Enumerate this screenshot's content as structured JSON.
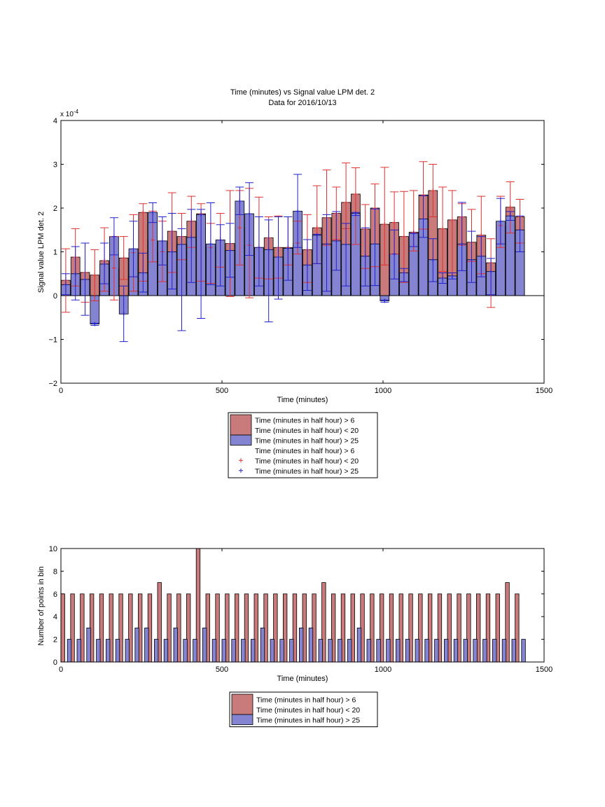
{
  "colors": {
    "red_fill": "#c97a7a",
    "blue_fill": "#8484d2",
    "red_err": "#e03030",
    "blue_err": "#2020cc",
    "axis": "#000000"
  },
  "chart_data": [
    {
      "type": "bar",
      "title": "Time (minutes) vs Signal value LPM det. 2",
      "subtitle": "Data for 2016/10/13",
      "xlabel": "Time (minutes)",
      "ylabel": "Signal value LPM det. 2",
      "exponent_label": "x 10",
      "exponent_power": "-4",
      "xlim": [
        0,
        1500
      ],
      "ylim": [
        -2,
        4
      ],
      "xticks": [
        0,
        500,
        1000,
        1500
      ],
      "yticks": [
        -2,
        -1,
        0,
        1,
        2,
        3,
        4
      ],
      "legend": {
        "position": "below",
        "entries": [
          {
            "label": "Time (minutes in half hour) > 6",
            "swatch": "red-bar"
          },
          {
            "label": "Time (minutes in half hour) < 20",
            "swatch": "red-bar"
          },
          {
            "label": "Time (minutes in half hour) > 25",
            "swatch": "blue-bar"
          },
          {
            "label": "Time (minutes in half hour) > 6",
            "swatch": "none"
          },
          {
            "label": "Time (minutes in half hour) < 20",
            "swatch": "red-plus"
          },
          {
            "label": "Time (minutes in half hour) > 25",
            "swatch": "blue-plus"
          }
        ]
      },
      "series": [
        {
          "color": "red",
          "x": [
            15,
            45,
            75,
            105,
            135,
            165,
            195,
            225,
            255,
            285,
            315,
            345,
            375,
            405,
            435,
            465,
            495,
            525,
            555,
            585,
            615,
            645,
            675,
            705,
            735,
            765,
            795,
            825,
            855,
            885,
            915,
            945,
            975,
            1005,
            1035,
            1065,
            1095,
            1125,
            1155,
            1185,
            1215,
            1245,
            1275,
            1305,
            1335,
            1365,
            1395,
            1425
          ],
          "y": [
            0.35,
            0.88,
            0.53,
            0.47,
            0.8,
            0.63,
            0.86,
            0.98,
            1.9,
            1.27,
            1.0,
            1.47,
            1.35,
            1.7,
            1.87,
            1.1,
            1.27,
            1.19,
            1.55,
            1.15,
            1.1,
            1.32,
            1.1,
            1.1,
            1.2,
            1.05,
            1.55,
            1.78,
            1.88,
            2.13,
            2.32,
            1.52,
            2.0,
            1.63,
            1.67,
            1.35,
            1.45,
            2.3,
            2.4,
            1.53,
            1.73,
            1.8,
            1.22,
            1.38,
            0.75,
            1.6,
            2.02,
            1.8
          ],
          "err_low": [
            -0.38,
            0.22,
            -0.15,
            -0.12,
            0.1,
            -0.1,
            0.37,
            0.1,
            0.33,
            0.77,
            0.32,
            0.53,
            0.82,
            1.1,
            0.33,
            0.28,
            0.65,
            -0.02,
            0.7,
            -0.05,
            0.4,
            0.38,
            0.4,
            0.7,
            0.95,
            0.3,
            0.73,
            1.15,
            1.28,
            1.53,
            1.17,
            0.62,
            0.66,
            0.7,
            0.95,
            0.3,
            1.02,
            1.52,
            1.8,
            0.55,
            0.52,
            1.15,
            0.78,
            0.5,
            -0.27,
            1.1,
            1.43,
            1.2
          ],
          "err_high": [
            1.07,
            1.53,
            1.2,
            1.05,
            1.55,
            1.35,
            1.35,
            1.85,
            2.1,
            1.93,
            1.7,
            2.35,
            1.88,
            2.27,
            2.1,
            1.65,
            1.88,
            2.4,
            2.4,
            2.45,
            2.25,
            1.8,
            1.82,
            1.8,
            1.7,
            1.85,
            2.51,
            2.87,
            2.48,
            3.03,
            2.92,
            2.08,
            2.55,
            2.93,
            2.37,
            2.38,
            2.4,
            3.06,
            3.0,
            2.48,
            2.4,
            2.1,
            1.97,
            2.27,
            1.3,
            2.27,
            2.6,
            2.2
          ]
        },
        {
          "color": "blue",
          "x": [
            15,
            45,
            75,
            105,
            135,
            165,
            195,
            225,
            255,
            285,
            315,
            345,
            375,
            405,
            435,
            465,
            495,
            525,
            555,
            585,
            615,
            645,
            675,
            705,
            735,
            765,
            795,
            825,
            855,
            885,
            915,
            945,
            975,
            1005,
            1035,
            1065,
            1095,
            1125,
            1155,
            1185,
            1215,
            1245,
            1275,
            1305,
            1335,
            1365,
            1395,
            1425
          ],
          "y": [
            0.25,
            0.5,
            0.37,
            -0.65,
            0.72,
            1.35,
            -0.42,
            1.07,
            0.52,
            1.9,
            1.25,
            1.0,
            1.17,
            1.33,
            1.85,
            1.18,
            1.27,
            1.03,
            2.16,
            1.87,
            1.1,
            1.05,
            0.88,
            1.08,
            1.93,
            0.7,
            1.38,
            1.18,
            1.25,
            1.17,
            1.88,
            0.9,
            1.18,
            -0.12,
            0.95,
            0.52,
            1.42,
            1.75,
            0.82,
            0.4,
            0.45,
            1.18,
            0.82,
            0.9,
            0.55,
            1.7,
            1.82,
            1.5
          ],
          "err_low": [
            0.02,
            -0.1,
            -0.45,
            -0.68,
            0.27,
            0.93,
            -1.05,
            0.43,
            0.08,
            1.67,
            0.7,
            0.15,
            -0.8,
            0.3,
            -0.52,
            0.25,
            0.22,
            0.42,
            1.85,
            0.92,
            0.22,
            -0.6,
            -0.08,
            0.35,
            1.1,
            0.12,
            0.73,
            0.1,
            0.58,
            0.22,
            1.83,
            0.22,
            0.23,
            -0.15,
            0.38,
            0.32,
            1.12,
            1.33,
            0.32,
            0.28,
            0.38,
            0.57,
            0.3,
            0.43,
            0.02,
            1.18,
            1.72,
            1.0
          ],
          "err_high": [
            0.5,
            1.12,
            1.2,
            -0.63,
            1.2,
            1.78,
            0.22,
            1.7,
            0.97,
            2.12,
            1.8,
            1.88,
            1.53,
            1.97,
            1.97,
            2.12,
            1.62,
            1.65,
            2.48,
            2.58,
            1.8,
            1.73,
            1.8,
            1.8,
            2.77,
            1.28,
            1.4,
            1.85,
            1.92,
            1.65,
            1.9,
            1.55,
            1.98,
            -0.1,
            1.5,
            0.62,
            1.42,
            2.28,
            1.3,
            0.52,
            0.52,
            2.13,
            1.47,
            1.35,
            0.85,
            2.22,
            1.92,
            1.82
          ]
        }
      ]
    },
    {
      "type": "bar",
      "xlabel": "Time (minutes)",
      "ylabel": "Number of points in bin",
      "xlim": [
        0,
        1500
      ],
      "ylim": [
        0,
        10
      ],
      "xticks": [
        0,
        500,
        1000,
        1500
      ],
      "yticks": [
        0,
        2,
        4,
        6,
        8,
        10
      ],
      "legend": {
        "position": "below",
        "entries": [
          {
            "label": "Time (minutes in half hour) > 6",
            "swatch": "red-bar"
          },
          {
            "label": "Time (minutes in half hour) < 20",
            "swatch": "red-bar"
          },
          {
            "label": "Time (minutes in half hour) > 25",
            "swatch": "blue-bar"
          }
        ]
      },
      "series": [
        {
          "color": "red",
          "x": [
            6,
            36,
            66,
            96,
            126,
            156,
            186,
            216,
            246,
            276,
            306,
            336,
            366,
            396,
            426,
            456,
            486,
            516,
            546,
            576,
            606,
            636,
            666,
            696,
            726,
            756,
            786,
            816,
            846,
            876,
            906,
            936,
            966,
            996,
            1026,
            1056,
            1086,
            1116,
            1146,
            1176,
            1206,
            1236,
            1266,
            1296,
            1326,
            1356,
            1386,
            1416
          ],
          "y": [
            6,
            6,
            6,
            6,
            6,
            6,
            6,
            6,
            6,
            6,
            7,
            6,
            6,
            6,
            10,
            6,
            6,
            6,
            6,
            6,
            6,
            6,
            6,
            6,
            6,
            6,
            6,
            7,
            6,
            6,
            6,
            6,
            6,
            6,
            6,
            6,
            6,
            6,
            6,
            6,
            6,
            6,
            6,
            6,
            6,
            6,
            7,
            6
          ]
        },
        {
          "color": "blue",
          "x": [
            26,
            56,
            86,
            116,
            146,
            176,
            206,
            236,
            266,
            296,
            326,
            356,
            386,
            416,
            446,
            476,
            506,
            536,
            566,
            596,
            626,
            656,
            686,
            716,
            746,
            776,
            806,
            836,
            866,
            896,
            926,
            956,
            986,
            1016,
            1046,
            1076,
            1106,
            1136,
            1166,
            1196,
            1226,
            1256,
            1286,
            1316,
            1346,
            1376,
            1406,
            1436
          ],
          "y": [
            2,
            2,
            3,
            2,
            2,
            2,
            2,
            3,
            3,
            2,
            2,
            3,
            2,
            2,
            3,
            2,
            2,
            2,
            2,
            2,
            3,
            2,
            2,
            2,
            3,
            3,
            2,
            2,
            2,
            2,
            3,
            2,
            2,
            2,
            2,
            2,
            2,
            2,
            2,
            2,
            2,
            2,
            2,
            2,
            2,
            2,
            2,
            2
          ]
        }
      ]
    }
  ]
}
